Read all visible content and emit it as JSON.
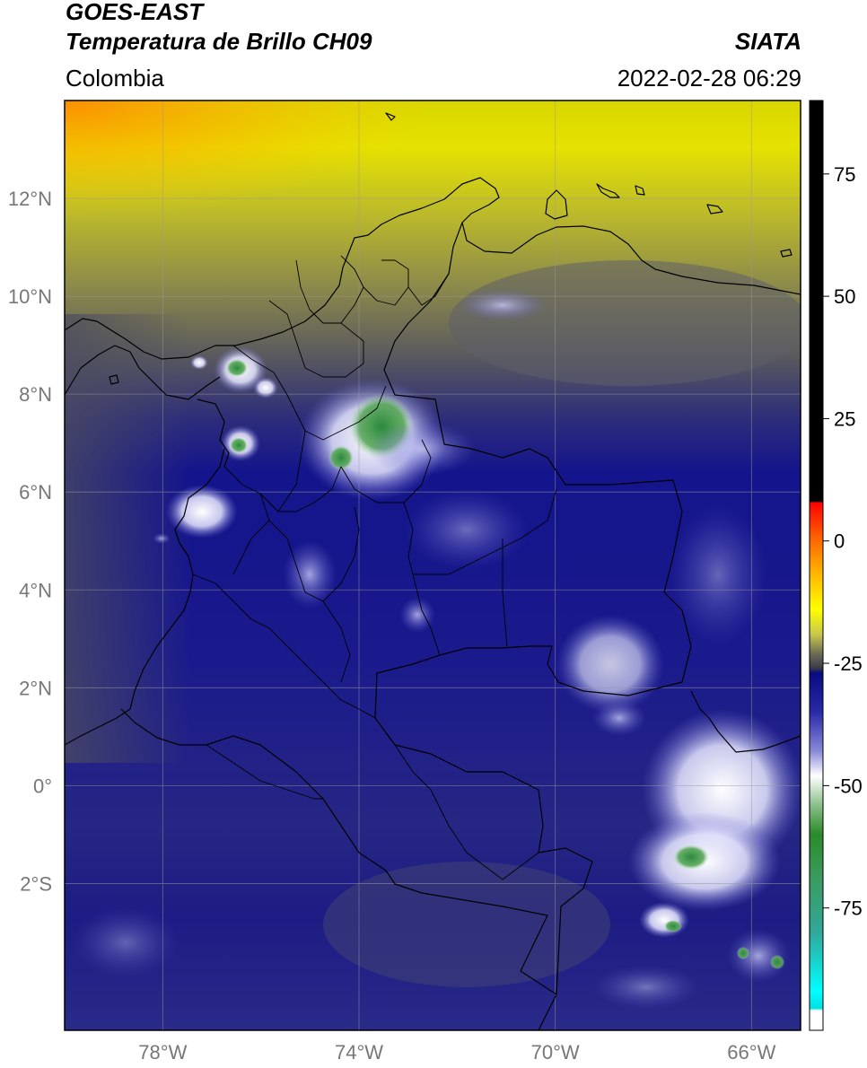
{
  "header": {
    "satellite": "GOES-EAST",
    "product": "Temperatura de Brillo CH09",
    "region": "Colombia",
    "organization": "SIATA",
    "datetime": "2022-02-28 06:29"
  },
  "map": {
    "lon_range": [
      -80,
      -65
    ],
    "lat_range": [
      -5,
      14
    ],
    "lon_ticks": [
      {
        "value": -78,
        "label": "78°W"
      },
      {
        "value": -74,
        "label": "74°W"
      },
      {
        "value": -70,
        "label": "70°W"
      },
      {
        "value": -66,
        "label": "66°W"
      }
    ],
    "lat_ticks": [
      {
        "value": 12,
        "label": "12°N"
      },
      {
        "value": 10,
        "label": "10°N"
      },
      {
        "value": 8,
        "label": "8°N"
      },
      {
        "value": 6,
        "label": "6°N"
      },
      {
        "value": 4,
        "label": "4°N"
      },
      {
        "value": 2,
        "label": "2°N"
      },
      {
        "value": 0,
        "label": "0°"
      },
      {
        "value": -2,
        "label": "2°S"
      }
    ],
    "gridlines": true
  },
  "colorbar": {
    "range": [
      -100,
      90
    ],
    "ticks": [
      {
        "value": 75,
        "label": "75"
      },
      {
        "value": 50,
        "label": "50"
      },
      {
        "value": 25,
        "label": "25"
      },
      {
        "value": 0,
        "label": "0"
      },
      {
        "value": -25,
        "label": "-25"
      },
      {
        "value": -50,
        "label": "-50"
      },
      {
        "value": -75,
        "label": "-75"
      }
    ],
    "stops": [
      {
        "value": 90,
        "color": "#000000"
      },
      {
        "value": 8,
        "color": "#000000"
      },
      {
        "value": 7.9,
        "color": "#ff0000"
      },
      {
        "value": 0,
        "color": "#ff6a00"
      },
      {
        "value": -8,
        "color": "#ffc400"
      },
      {
        "value": -14,
        "color": "#ffff00"
      },
      {
        "value": -19,
        "color": "#c9c94a"
      },
      {
        "value": -23,
        "color": "#6e6e55"
      },
      {
        "value": -26,
        "color": "#3a3a4a"
      },
      {
        "value": -27,
        "color": "#0a0a80"
      },
      {
        "value": -35,
        "color": "#2a2aa8"
      },
      {
        "value": -43,
        "color": "#8a8ad8"
      },
      {
        "value": -48,
        "color": "#ffffff"
      },
      {
        "value": -54,
        "color": "#8ac08a"
      },
      {
        "value": -60,
        "color": "#2a8a2a"
      },
      {
        "value": -68,
        "color": "#3a9a5a"
      },
      {
        "value": -80,
        "color": "#30a89a"
      },
      {
        "value": -92,
        "color": "#00ffff"
      },
      {
        "value": -95.5,
        "color": "#00e0e0"
      },
      {
        "value": -96,
        "color": "#ffffff"
      },
      {
        "value": -100,
        "color": "#ffffff"
      }
    ]
  }
}
